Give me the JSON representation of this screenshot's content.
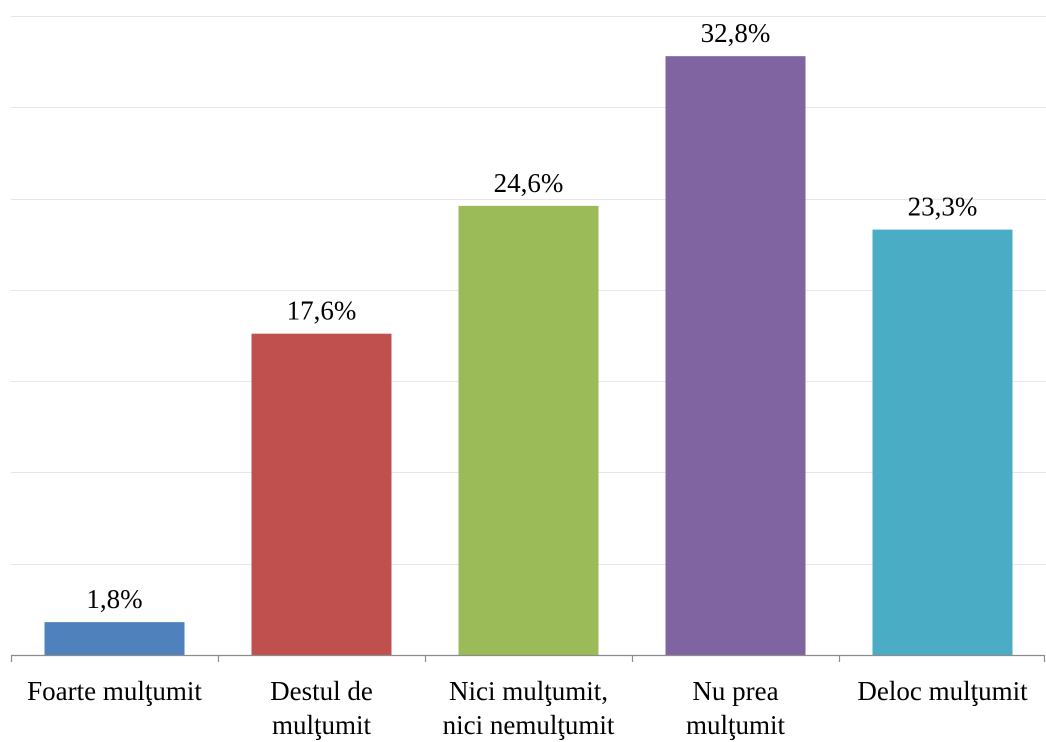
{
  "chart_data": {
    "type": "bar",
    "categories": [
      [
        "Foarte mulţumit"
      ],
      [
        "Destul de",
        "mulţumit"
      ],
      [
        "Nici mulţumit,",
        "nici nemulţumit"
      ],
      [
        "Nu prea",
        "mulţumit"
      ],
      [
        "Deloc mulţumit"
      ]
    ],
    "values": [
      1.8,
      17.6,
      24.6,
      32.8,
      23.3
    ],
    "value_labels": [
      "1,8%",
      "17,6%",
      "24,6%",
      "32,8%",
      "23,3%"
    ],
    "colors": [
      "#4f81bd",
      "#c0504d",
      "#9bbb59",
      "#8064a2",
      "#4bacc6"
    ],
    "ylim": [
      0,
      35
    ],
    "grid": true,
    "title": "",
    "xlabel": "",
    "ylabel": ""
  }
}
